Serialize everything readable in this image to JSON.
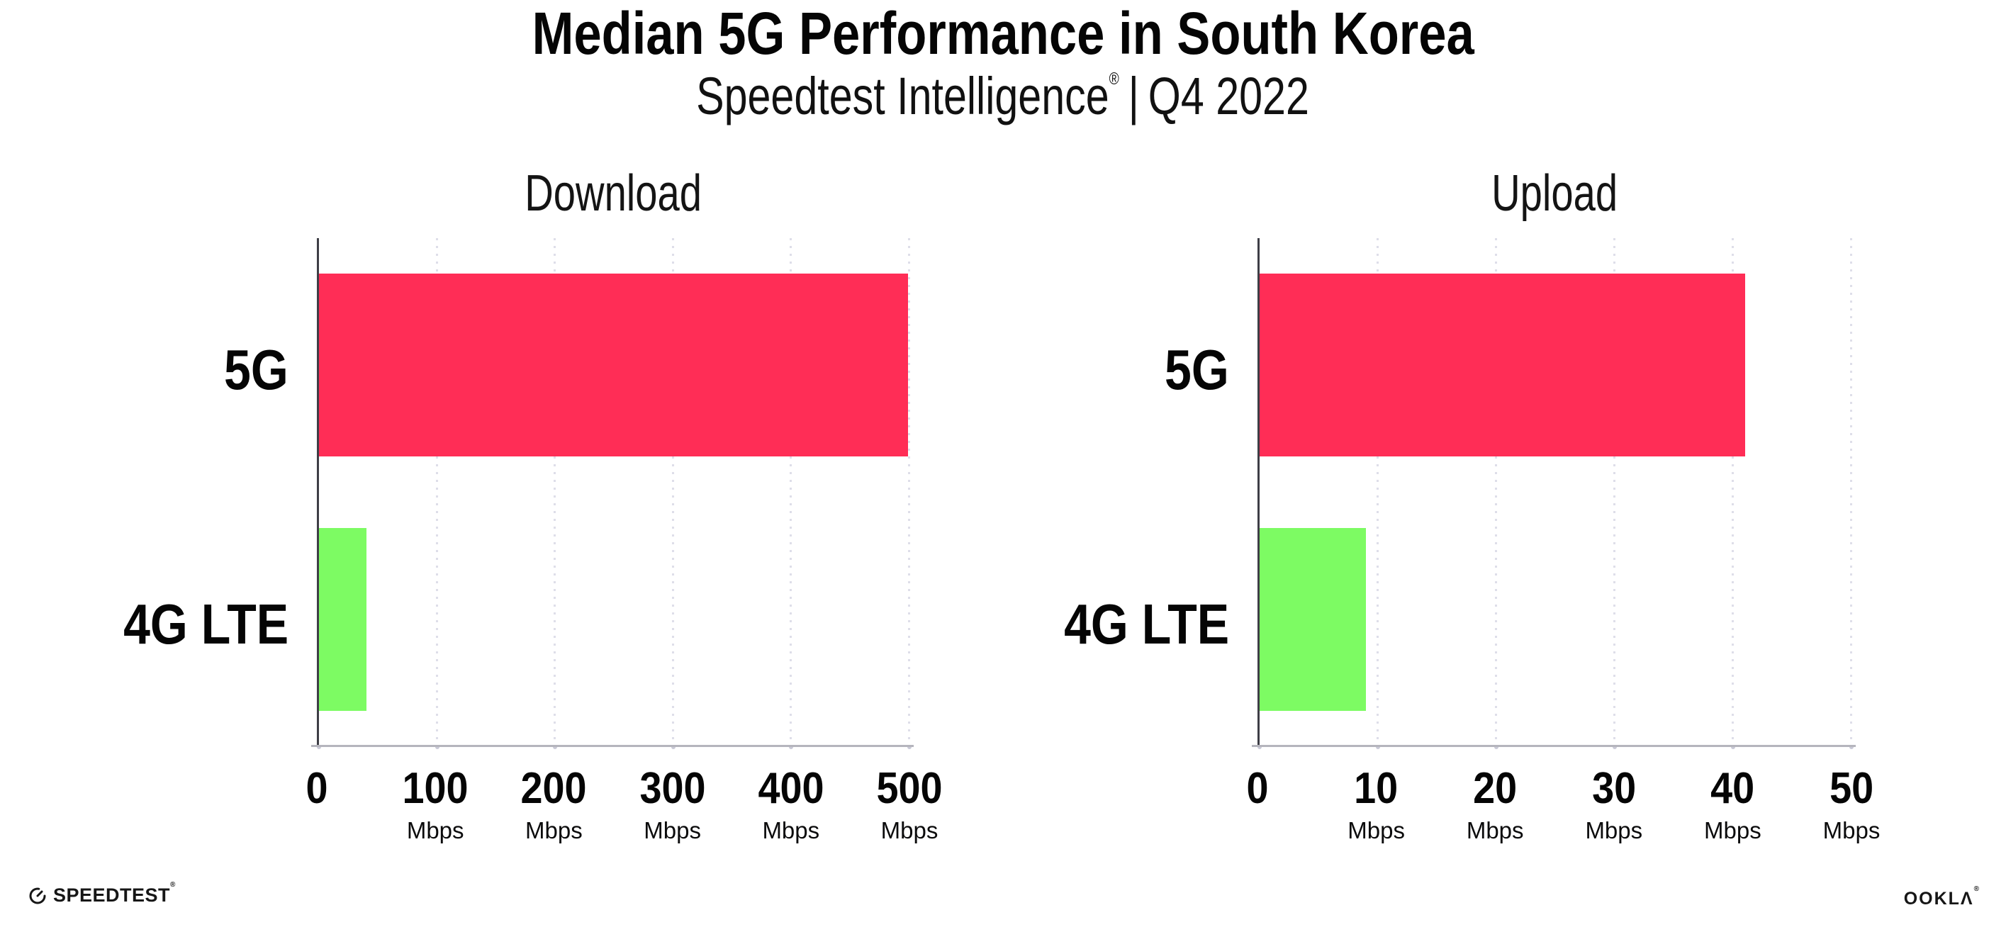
{
  "header": {
    "title": "Median 5G Performance in South Korea",
    "subtitle": {
      "brand": "Speedtest Intelligence",
      "mark": "®",
      "divider": "|",
      "period": "Q4 2022"
    }
  },
  "chart_data": [
    {
      "type": "bar",
      "orientation": "horizontal",
      "title": "Download",
      "categories": [
        "5G",
        "4G LTE"
      ],
      "values": [
        499,
        40
      ],
      "unit": "Mbps",
      "xlim": [
        0,
        500
      ],
      "x_ticks": [
        0,
        100,
        200,
        300,
        400,
        500
      ],
      "tick_unit_label": "Mbps",
      "bar_colors": [
        "#FF2D56",
        "#7DFB63"
      ],
      "grid": "vertical-dotted",
      "legend": "none"
    },
    {
      "type": "bar",
      "orientation": "horizontal",
      "title": "Upload",
      "categories": [
        "5G",
        "4G LTE"
      ],
      "values": [
        41,
        9
      ],
      "unit": "Mbps",
      "xlim": [
        0,
        50
      ],
      "x_ticks": [
        0,
        10,
        20,
        30,
        40,
        50
      ],
      "tick_unit_label": "Mbps",
      "bar_colors": [
        "#FF2D56",
        "#7DFB63"
      ],
      "grid": "vertical-dotted",
      "legend": "none"
    }
  ],
  "footer": {
    "speedtest_label": "SPEEDTEST",
    "speedtest_mark": "®",
    "speedtest_icon": "gauge-icon",
    "ookla_label": "OOKLΛ",
    "ookla_mark": "®"
  },
  "colors": {
    "bar_5g": "#FF2D56",
    "bar_4g_lte": "#7DFB63",
    "y_axis_line": "#3E3E46",
    "x_axis_line": "#B5B5BD",
    "gridline": "#DEDEE9",
    "text": "#050505",
    "background": "#FFFFFF"
  }
}
